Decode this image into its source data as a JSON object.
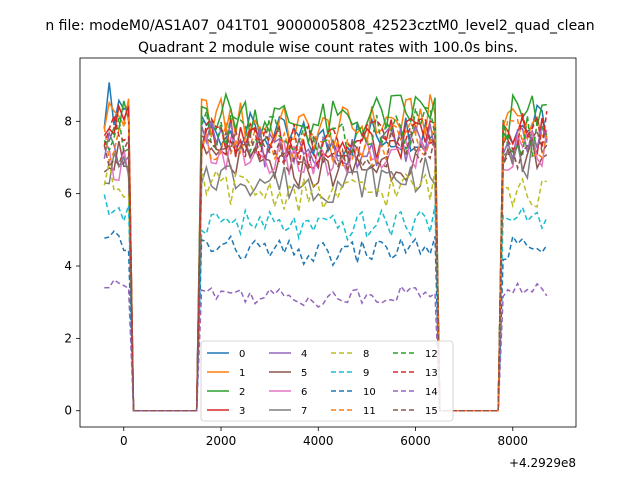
{
  "chart_data": {
    "type": "line",
    "suptitle": "n file: modeM0/AS1A07_041T01_9000005808_42523cztM0_level2_quad_clean",
    "title": "Quadrant 2 module wise count rates with 100.0s bins.",
    "xlabel": "",
    "ylabel": "",
    "x_offset_label": "+4.2929e8",
    "xlim": [
      -900,
      9300
    ],
    "ylim": [
      -0.45,
      9.75
    ],
    "xticks": [
      0,
      2000,
      4000,
      6000,
      8000
    ],
    "yticks": [
      0,
      2,
      4,
      6,
      8
    ],
    "grid": false,
    "legend_position": "lower-center",
    "colors": [
      "#1f77b4",
      "#ff7f0e",
      "#2ca02c",
      "#d62728",
      "#9467bd",
      "#8c564b",
      "#e377c2",
      "#7f7f7f",
      "#bcbd22",
      "#17becf",
      "#1f77b4",
      "#ff7f0e",
      "#2ca02c",
      "#d62728",
      "#9467bd",
      "#8c564b"
    ],
    "series": [
      {
        "name": "0",
        "style": "solid",
        "levels": [
          8.5,
          7.4,
          7.9
        ]
      },
      {
        "name": "1",
        "style": "solid",
        "levels": [
          8.2,
          7.7,
          8.0
        ]
      },
      {
        "name": "2",
        "style": "solid",
        "levels": [
          8.0,
          7.9,
          8.1
        ]
      },
      {
        "name": "3",
        "style": "solid",
        "levels": [
          7.9,
          7.2,
          7.6
        ]
      },
      {
        "name": "4",
        "style": "solid",
        "levels": [
          7.3,
          7.1,
          7.4
        ]
      },
      {
        "name": "5",
        "style": "solid",
        "levels": [
          7.1,
          6.6,
          7.1
        ]
      },
      {
        "name": "6",
        "style": "solid",
        "levels": [
          6.9,
          6.8,
          7.2
        ]
      },
      {
        "name": "7",
        "style": "solid",
        "levels": [
          6.7,
          6.2,
          6.9
        ]
      },
      {
        "name": "8",
        "style": "dashed",
        "levels": [
          6.4,
          5.9,
          6.0
        ]
      },
      {
        "name": "9",
        "style": "dashed",
        "levels": [
          5.6,
          5.0,
          5.3
        ]
      },
      {
        "name": "10",
        "style": "dashed",
        "levels": [
          4.6,
          4.3,
          4.5
        ]
      },
      {
        "name": "11",
        "style": "dashed",
        "levels": [
          7.5,
          7.1,
          7.5
        ]
      },
      {
        "name": "12",
        "style": "dashed",
        "levels": [
          7.5,
          7.4,
          7.6
        ]
      },
      {
        "name": "13",
        "style": "dashed",
        "levels": [
          7.6,
          7.3,
          7.8
        ]
      },
      {
        "name": "14",
        "style": "dashed",
        "levels": [
          3.4,
          3.1,
          3.3
        ]
      },
      {
        "name": "15",
        "style": "dashed",
        "levels": [
          7.2,
          7.0,
          7.2
        ]
      }
    ],
    "segments": [
      {
        "start": -400,
        "end": 100
      },
      {
        "start": 1600,
        "end": 6400
      },
      {
        "start": 7800,
        "end": 8700
      }
    ]
  }
}
